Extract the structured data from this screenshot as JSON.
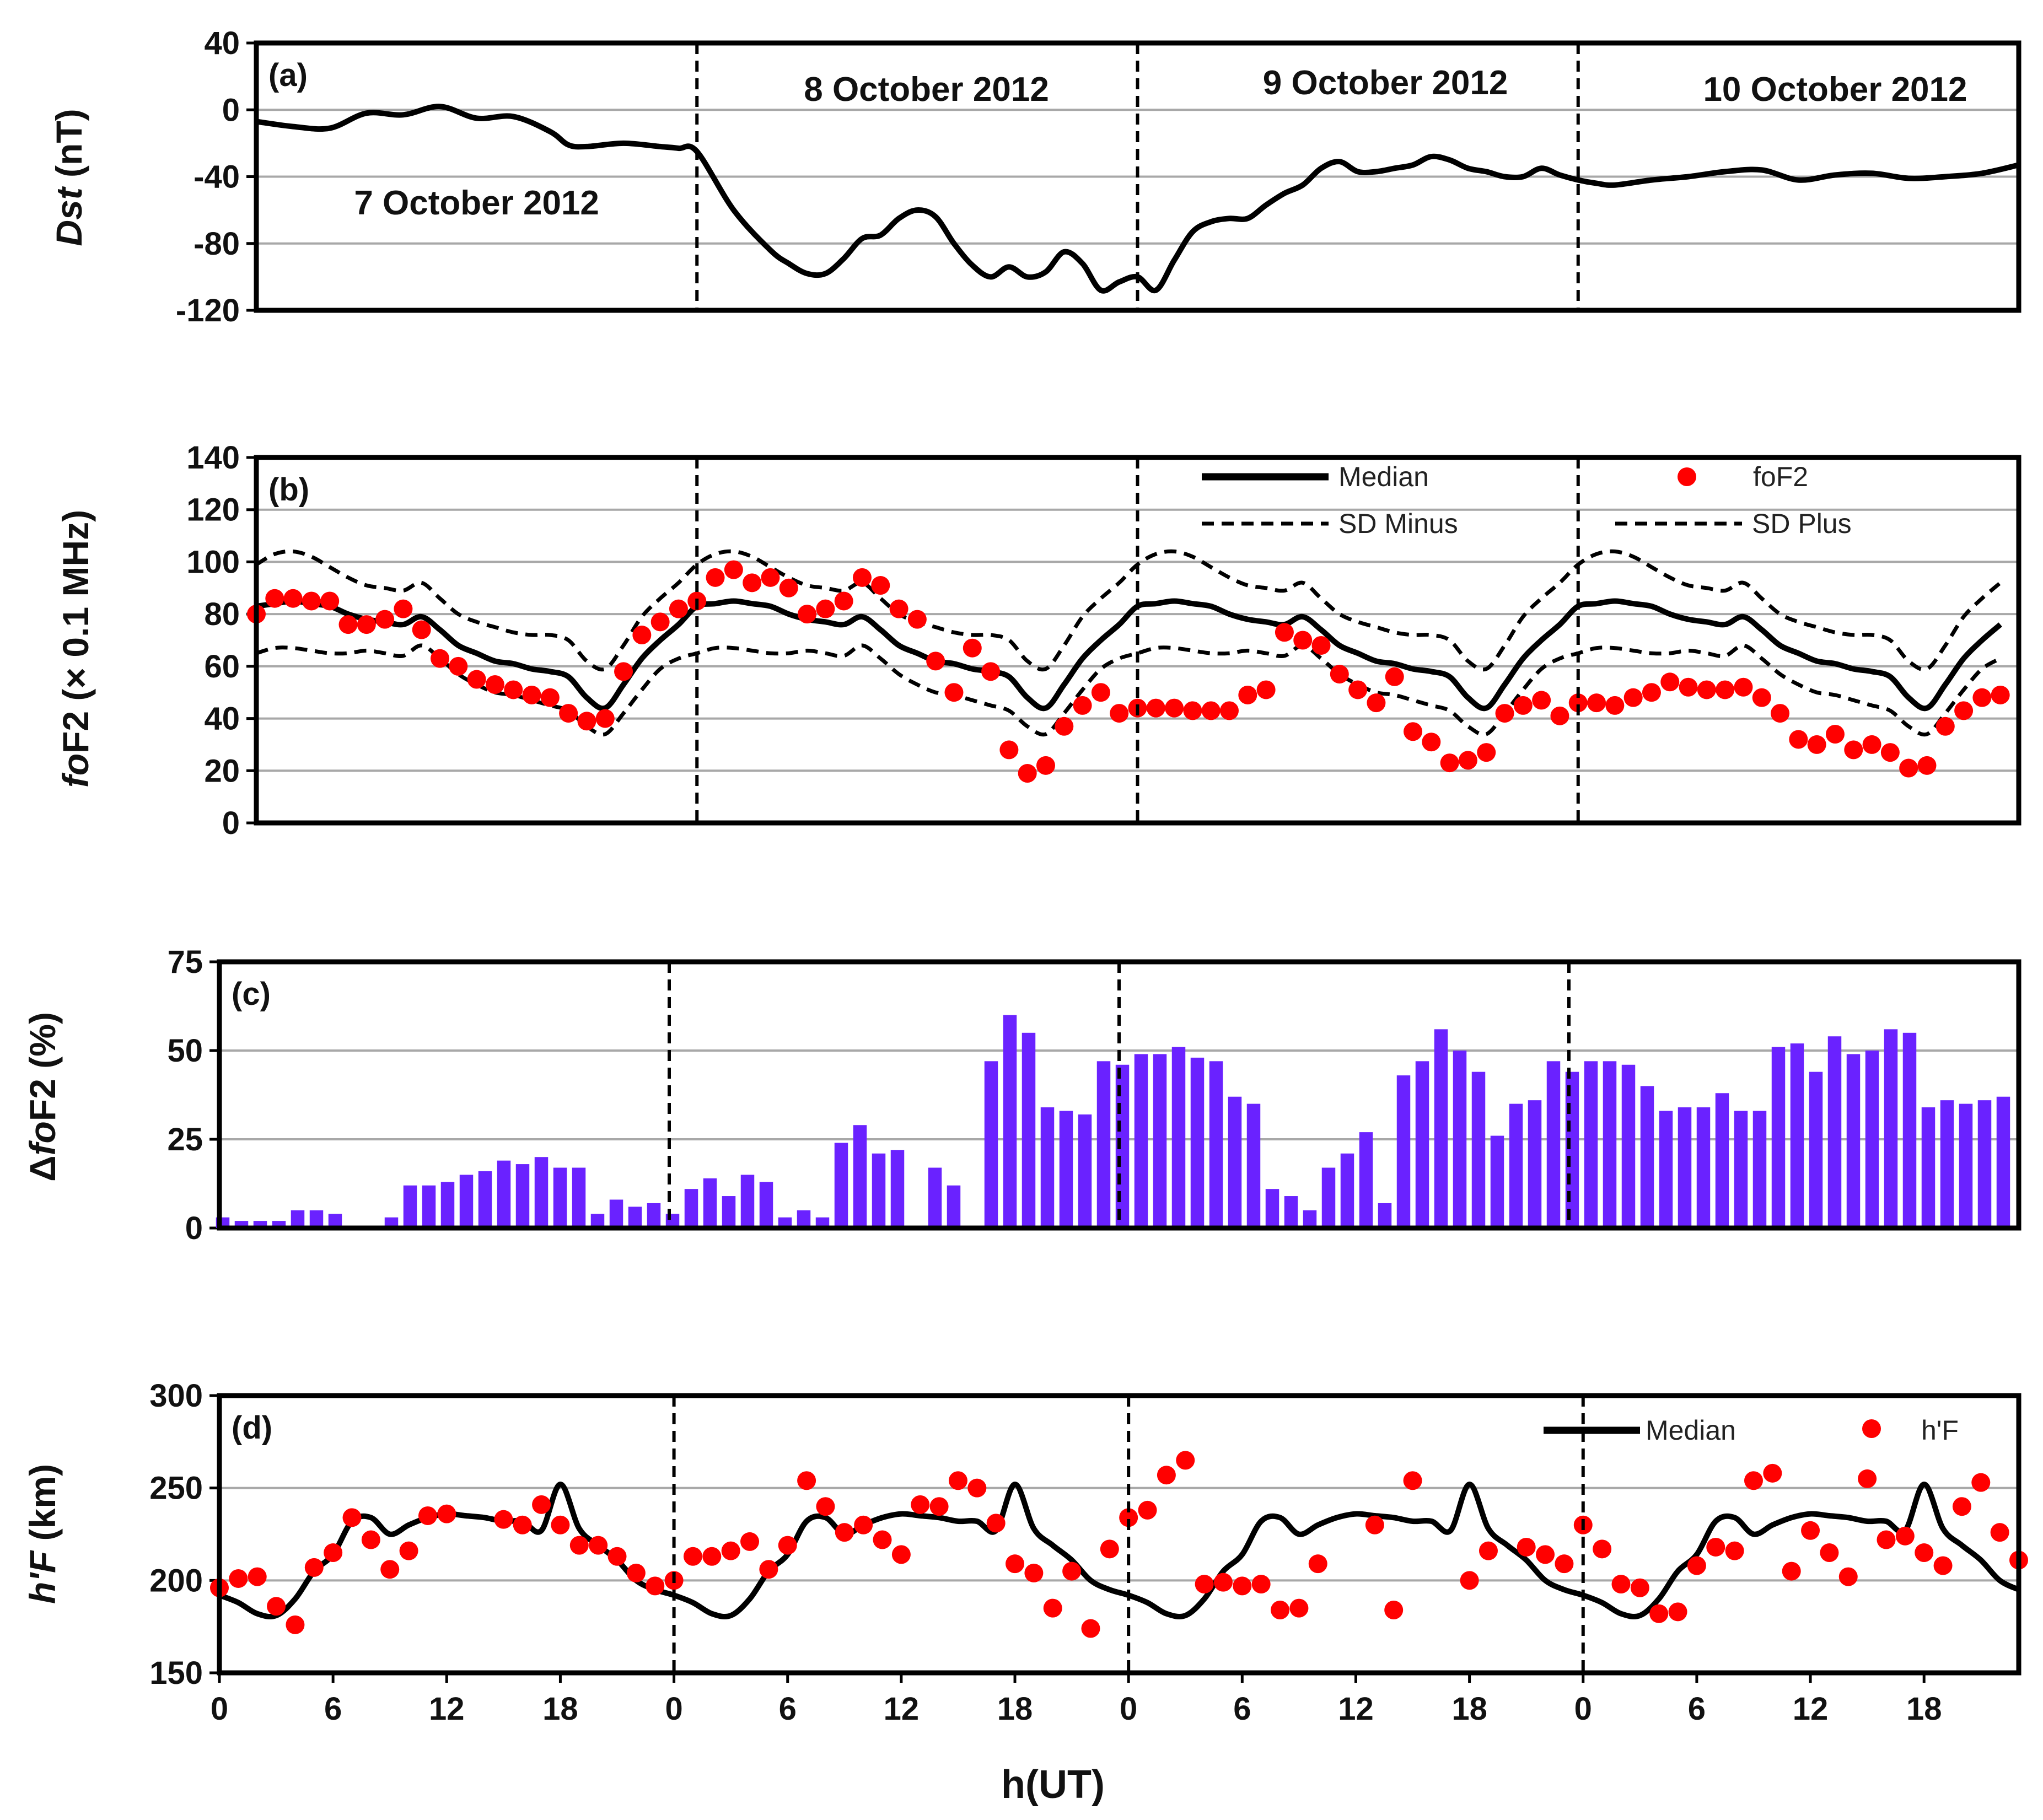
{
  "chart_data": [
    {
      "panel": "a",
      "type": "line",
      "panel_label": "(a)",
      "ylabel": "Dst (nT)",
      "ylabel_italic": "Dst",
      "ylabel_unit": " (nT)",
      "ylim": [
        -120,
        40
      ],
      "yticks": [
        40,
        0,
        -40,
        -80,
        -120
      ],
      "xlim": [
        0,
        96
      ],
      "day_separators": [
        24,
        48,
        72
      ],
      "dates": [
        {
          "label": "7 October 2012",
          "x": 12,
          "y": -56
        },
        {
          "label": "8 October 2012",
          "x": 36.5,
          "y": 12
        },
        {
          "label": "9 October 2012",
          "x": 61.5,
          "y": 16
        },
        {
          "label": "10 October 2012",
          "x": 86,
          "y": 12
        }
      ],
      "series": [
        {
          "name": "Dst",
          "color": "#000000",
          "x": [
            0,
            2,
            4,
            6,
            8,
            10,
            12,
            14,
            16,
            17,
            18,
            20,
            22,
            23,
            24,
            26,
            28,
            29,
            30,
            31,
            32,
            33,
            34,
            35,
            36,
            37,
            38,
            39,
            40,
            41,
            42,
            43,
            44,
            45,
            46,
            47,
            48,
            49,
            50,
            51,
            52,
            53,
            54,
            55,
            56,
            57,
            58,
            59,
            60,
            61,
            62,
            63,
            64,
            65,
            66,
            67,
            68,
            69,
            70,
            71,
            72,
            73,
            74,
            76,
            78,
            80,
            82,
            84,
            86,
            88,
            90,
            92,
            94,
            96
          ],
          "values": [
            -7,
            -10,
            -11,
            -2,
            -3,
            2,
            -5,
            -4,
            -13,
            -21,
            -22,
            -20,
            -22,
            -23,
            -25,
            -60,
            -84,
            -92,
            -98,
            -98,
            -89,
            -77,
            -75,
            -65,
            -60,
            -64,
            -80,
            -93,
            -100,
            -94,
            -100,
            -97,
            -85,
            -92,
            -108,
            -103,
            -100,
            -108,
            -90,
            -73,
            -67,
            -65,
            -65,
            -57,
            -50,
            -45,
            -35,
            -31,
            -37,
            -37,
            -35,
            -33,
            -28,
            -30,
            -35,
            -37,
            -40,
            -40,
            -35,
            -39,
            -42,
            -44,
            -45,
            -42,
            -40,
            -37,
            -36,
            -42,
            -39,
            -38,
            -41,
            -40,
            -38,
            -33
          ]
        }
      ]
    },
    {
      "panel": "b",
      "type": "line+scatter",
      "panel_label": "(b)",
      "ylabel": "foF2 (× 0.1 MHz)",
      "ylabel_italic": "fo",
      "ylabel_unit": "F2 (× 0.1 MHz)",
      "ylim": [
        0,
        140
      ],
      "yticks": [
        140,
        120,
        100,
        80,
        60,
        40,
        20,
        0
      ],
      "xlim": [
        0,
        96
      ],
      "day_separators": [
        24,
        48,
        72
      ],
      "legend": [
        "Median",
        "foF2",
        "SD Minus",
        "SD Plus"
      ],
      "series": [
        {
          "name": "Median",
          "color": "#000000",
          "style": "solid",
          "x": [
            0,
            1,
            2,
            3,
            4,
            5,
            6,
            7,
            8,
            9,
            10,
            11,
            12,
            13,
            14,
            15,
            16,
            17,
            18,
            19,
            20,
            21,
            22,
            23
          ],
          "values": [
            83,
            84,
            85,
            84,
            83,
            80,
            78,
            77,
            76,
            79,
            74,
            68,
            65,
            62,
            61,
            59,
            58,
            56,
            48,
            44,
            53,
            63,
            70,
            76
          ]
        },
        {
          "name": "SD Plus",
          "color": "#000000",
          "style": "dashed",
          "x": [
            0,
            1,
            2,
            3,
            4,
            5,
            6,
            7,
            8,
            9,
            10,
            11,
            12,
            13,
            14,
            15,
            16,
            17,
            18,
            19,
            20,
            21,
            22,
            23
          ],
          "values": [
            99,
            103,
            104,
            102,
            98,
            94,
            91,
            90,
            89,
            92,
            86,
            80,
            77,
            75,
            73,
            72,
            72,
            70,
            62,
            59,
            68,
            79,
            86,
            92
          ]
        },
        {
          "name": "SD Minus",
          "color": "#000000",
          "style": "dashed",
          "x": [
            0,
            1,
            2,
            3,
            4,
            5,
            6,
            7,
            8,
            9,
            10,
            11,
            12,
            13,
            14,
            15,
            16,
            17,
            18,
            19,
            20,
            21,
            22,
            23
          ],
          "values": [
            65,
            67,
            67,
            66,
            65,
            65,
            66,
            65,
            64,
            68,
            63,
            57,
            53,
            50,
            49,
            47,
            45,
            43,
            37,
            34,
            42,
            51,
            59,
            63
          ]
        },
        {
          "name": "foF2",
          "color": "#ff0000",
          "style": "points",
          "x": [
            0,
            1,
            2,
            3,
            4,
            5,
            6,
            7,
            8,
            9,
            10,
            11,
            12,
            13,
            14,
            15,
            16,
            17,
            18,
            19,
            20,
            21,
            22,
            23,
            24,
            25,
            26,
            27,
            28,
            29,
            30,
            31,
            32,
            33,
            34,
            35,
            36,
            37,
            38,
            39,
            40,
            41,
            42,
            43,
            44,
            45,
            46,
            47,
            48,
            49,
            50,
            51,
            52,
            53,
            54,
            55,
            56,
            57,
            58,
            59,
            60,
            61,
            62,
            63,
            64,
            65,
            66,
            67,
            68,
            69,
            70,
            71,
            72,
            73,
            74,
            75,
            76,
            77,
            78,
            79,
            80,
            81,
            82,
            83,
            84,
            85,
            86,
            87,
            88,
            89,
            90,
            91,
            92,
            93,
            94,
            95
          ],
          "values": [
            80,
            86,
            86,
            85,
            85,
            76,
            76,
            78,
            82,
            74,
            63,
            60,
            55,
            53,
            51,
            49,
            48,
            42,
            39,
            40,
            58,
            72,
            77,
            82,
            85,
            94,
            97,
            92,
            94,
            90,
            80,
            82,
            85,
            94,
            91,
            82,
            78,
            62,
            50,
            67,
            58,
            28,
            19,
            22,
            37,
            45,
            50,
            42,
            44,
            44,
            44,
            43,
            43,
            43,
            49,
            51,
            73,
            70,
            68,
            57,
            51,
            46,
            56,
            35,
            31,
            23,
            24,
            27,
            42,
            45,
            47,
            41,
            46,
            46,
            45,
            48,
            50,
            54,
            52,
            51,
            51,
            52,
            48,
            42,
            32,
            30,
            34,
            28,
            30,
            27,
            21,
            22,
            37,
            43,
            48,
            49
          ]
        }
      ]
    },
    {
      "panel": "c",
      "type": "bar",
      "panel_label": "(c)",
      "ylabel": "ΔfoF2 (%)",
      "ylabel_delta": "Δ",
      "ylabel_italic": "fo",
      "ylabel_unit": "F2 (%)",
      "ylim": [
        0,
        75
      ],
      "yticks": [
        75,
        50,
        25,
        0
      ],
      "xlim": [
        0,
        96
      ],
      "day_separators": [
        24,
        48,
        72
      ],
      "bar_color": "#6a22ff",
      "series": [
        {
          "name": "ΔfoF2",
          "x": [
            0,
            1,
            2,
            3,
            4,
            5,
            6,
            7,
            8,
            9,
            10,
            11,
            12,
            13,
            14,
            15,
            16,
            17,
            18,
            19,
            20,
            21,
            22,
            23,
            24,
            25,
            26,
            27,
            28,
            29,
            30,
            31,
            32,
            33,
            34,
            35,
            36,
            37,
            38,
            39,
            40,
            41,
            42,
            43,
            44,
            45,
            46,
            47,
            48,
            49,
            50,
            51,
            52,
            53,
            54,
            55,
            56,
            57,
            58,
            59,
            60,
            61,
            62,
            63,
            64,
            65,
            66,
            67,
            68,
            69,
            70,
            71,
            72,
            73,
            74,
            75,
            76,
            77,
            78,
            79,
            80,
            81,
            82,
            83,
            84,
            85,
            86,
            87,
            88,
            89,
            90,
            91,
            92,
            93,
            94,
            95
          ],
          "values": [
            3,
            2,
            2,
            2,
            5,
            5,
            4,
            0,
            0,
            3,
            12,
            12,
            13,
            15,
            16,
            19,
            18,
            20,
            17,
            17,
            4,
            8,
            6,
            7,
            4,
            11,
            14,
            9,
            15,
            13,
            3,
            5,
            3,
            24,
            29,
            21,
            22,
            0,
            17,
            12,
            0,
            47,
            60,
            55,
            34,
            33,
            32,
            47,
            46,
            49,
            49,
            51,
            48,
            47,
            37,
            35,
            11,
            9,
            5,
            17,
            21,
            27,
            7,
            43,
            47,
            56,
            50,
            44,
            26,
            35,
            36,
            47,
            44,
            47,
            47,
            46,
            40,
            33,
            34,
            34,
            38,
            33,
            33,
            51,
            52,
            44,
            54,
            49,
            50,
            56,
            55,
            34,
            36,
            35,
            36,
            37
          ]
        }
      ]
    },
    {
      "panel": "d",
      "type": "line+scatter",
      "panel_label": "(d)",
      "ylabel": "h'F (km)",
      "ylabel_italic": "h'F",
      "ylabel_unit": " (km)",
      "ylim": [
        150,
        300
      ],
      "yticks": [
        300,
        250,
        200,
        150
      ],
      "xlim": [
        0,
        95
      ],
      "day_separators": [
        24,
        48,
        72
      ],
      "xlabel": "h(UT)",
      "xticks": [
        0,
        6,
        12,
        18,
        24,
        30,
        36,
        42,
        48,
        54,
        60,
        66,
        72,
        78,
        84,
        90
      ],
      "xtick_labels": [
        "0",
        "6",
        "12",
        "18",
        "0",
        "6",
        "12",
        "18",
        "0",
        "6",
        "12",
        "18",
        "0",
        "6",
        "12",
        "18"
      ],
      "legend": [
        "Median",
        "h'F"
      ],
      "series": [
        {
          "name": "Median",
          "color": "#000000",
          "style": "solid",
          "x": [
            0,
            1,
            2,
            3,
            4,
            5,
            6,
            7,
            8,
            9,
            10,
            11,
            12,
            13,
            14,
            15,
            16,
            17,
            18,
            19,
            20,
            21,
            22,
            23
          ],
          "values": [
            192,
            188,
            182,
            181,
            190,
            205,
            214,
            232,
            234,
            225,
            230,
            234,
            236,
            235,
            234,
            232,
            232,
            227,
            252,
            228,
            219,
            211,
            200,
            195
          ]
        },
        {
          "name": "h'F",
          "color": "#ff0000",
          "style": "points",
          "x": [
            0,
            1,
            2,
            3,
            4,
            5,
            6,
            7,
            8,
            9,
            10,
            11,
            12,
            15,
            16,
            17,
            18,
            19,
            20,
            21,
            22,
            23,
            24,
            25,
            26,
            27,
            28,
            29,
            30,
            31,
            32,
            33,
            34,
            35,
            36,
            37,
            38,
            39,
            40,
            41,
            42,
            43,
            44,
            45,
            46,
            47,
            48,
            49,
            50,
            51,
            52,
            53,
            54,
            55,
            56,
            57,
            58,
            61,
            62,
            63,
            66,
            67,
            69,
            70,
            71,
            72,
            73,
            74,
            75,
            76,
            77,
            78,
            79,
            80,
            81,
            82,
            83,
            84,
            85,
            86,
            87,
            88,
            89,
            90,
            91,
            92,
            93,
            94,
            95
          ],
          "values": [
            196,
            201,
            202,
            186,
            176,
            207,
            215,
            234,
            222,
            206,
            216,
            235,
            236,
            233,
            230,
            241,
            230,
            219,
            219,
            213,
            204,
            197,
            200,
            213,
            213,
            216,
            221,
            206,
            219,
            254,
            240,
            226,
            230,
            222,
            214,
            241,
            240,
            254,
            250,
            231,
            209,
            204,
            185,
            205,
            174,
            217,
            234,
            238,
            257,
            265,
            198,
            199,
            197,
            198,
            184,
            185,
            209,
            230,
            184,
            254,
            200,
            216,
            218,
            214,
            209,
            230,
            217,
            198,
            196,
            182,
            183,
            208,
            218,
            216,
            254,
            258,
            205,
            227,
            215,
            202,
            255,
            222,
            224,
            215,
            208,
            240,
            253,
            226,
            211
          ]
        }
      ]
    }
  ]
}
